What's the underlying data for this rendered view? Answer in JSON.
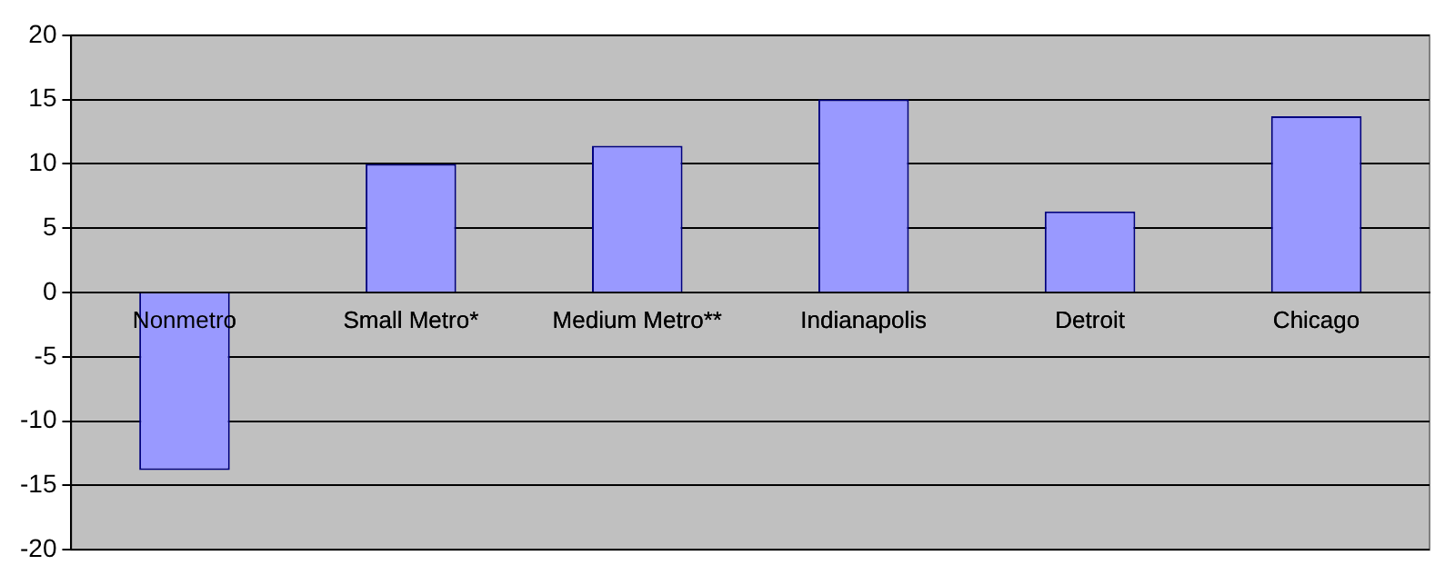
{
  "chart_data": {
    "type": "bar",
    "categories": [
      "Nonmetro",
      "Small Metro*",
      "Medium Metro**",
      "Indianapolis",
      "Detroit",
      "Chicago"
    ],
    "values": [
      -13.8,
      10,
      11.4,
      15,
      6.3,
      13.7
    ],
    "color": "#9999ff",
    "ylim": [
      -20,
      20
    ],
    "yticks": [
      -20,
      -15,
      -10,
      -5,
      0,
      5,
      10,
      15,
      20
    ],
    "grid": "y",
    "legend": false
  }
}
